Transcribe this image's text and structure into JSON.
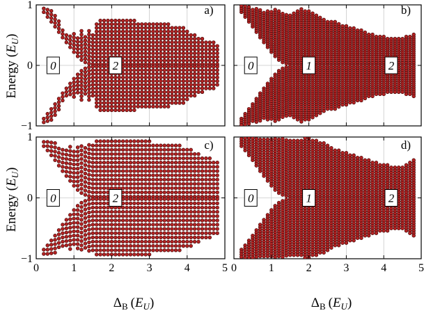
{
  "figure": {
    "ylabel": "Energy (E_U)",
    "ylabel_main": "Energy (",
    "ylabel_sym": "E",
    "ylabel_sub": "U",
    "ylabel_close": ")",
    "xlabel_main": "Δ",
    "xlabel_sub": "B",
    "xlabel_rest": "(",
    "xlabel_sym": "E",
    "xlabel_sym_sub": "U",
    "xlabel_close": ")",
    "dot_color": "#b22222",
    "dot_edge": "#3a0000"
  },
  "chart_data": [
    {
      "type": "scatter",
      "panel_label": "a)",
      "xlim": [
        0,
        5
      ],
      "ylim": [
        -1,
        1
      ],
      "xticks": [
        "0",
        "1",
        "2",
        "3",
        "4",
        "5"
      ],
      "yticks": [
        "−1",
        "0",
        "1"
      ],
      "grid": true,
      "boxes": [
        {
          "text": "0",
          "x": 0.45,
          "y": 0
        },
        {
          "text": "2",
          "x": 2.1,
          "y": 0
        }
      ],
      "x": [
        0.2,
        0.3,
        0.4,
        0.5,
        0.6,
        0.7,
        0.8,
        0.9,
        1.0,
        1.1,
        1.2,
        1.3,
        1.4,
        1.5,
        1.6,
        1.7,
        1.8,
        1.9,
        2.0,
        2.1,
        2.2,
        2.3,
        2.4,
        2.5,
        2.6,
        2.7,
        2.8,
        2.9,
        3.0,
        3.1,
        3.2,
        3.3,
        3.4,
        3.5,
        3.6,
        3.7,
        3.8,
        3.9,
        4.0,
        4.1,
        4.2,
        4.3,
        4.4,
        4.5,
        4.6,
        4.7,
        4.8
      ],
      "gap": [
        0.88,
        0.8,
        0.72,
        0.64,
        0.55,
        0.46,
        0.38,
        0.3,
        0.22,
        0.15,
        0.09,
        0.05,
        0.03,
        0.02,
        0.02,
        0.02,
        0.02,
        0.02,
        0.02,
        0.02,
        0.02,
        0.02,
        0.02,
        0.02,
        0.02,
        0.02,
        0.02,
        0.02,
        0.02,
        0.02,
        0.02,
        0.02,
        0.02,
        0.02,
        0.02,
        0.02,
        0.02,
        0.02,
        0.02,
        0.02,
        0.02,
        0.02,
        0.02,
        0.02,
        0.02,
        0.02,
        0.02
      ],
      "emax": [
        0.98,
        0.95,
        0.9,
        0.85,
        0.75,
        0.6,
        0.55,
        0.5,
        0.55,
        0.45,
        0.6,
        0.5,
        0.6,
        0.55,
        0.72,
        0.75,
        0.75,
        0.75,
        0.75,
        0.75,
        0.75,
        0.75,
        0.74,
        0.74,
        0.74,
        0.73,
        0.73,
        0.72,
        0.72,
        0.71,
        0.7,
        0.7,
        0.69,
        0.68,
        0.66,
        0.65,
        0.64,
        0.62,
        0.6,
        0.55,
        0.5,
        0.48,
        0.45,
        0.42,
        0.4,
        0.38,
        0.35
      ],
      "step": [
        0.06,
        0.06,
        0.06,
        0.06,
        0.06,
        0.06,
        0.06,
        0.06,
        0.06,
        0.06,
        0.06,
        0.06,
        0.06,
        0.06,
        0.06,
        0.06,
        0.06,
        0.06,
        0.06,
        0.06,
        0.06,
        0.06,
        0.06,
        0.06,
        0.06,
        0.06,
        0.06,
        0.06,
        0.06,
        0.06,
        0.06,
        0.06,
        0.06,
        0.06,
        0.06,
        0.06,
        0.06,
        0.06,
        0.06,
        0.06,
        0.06,
        0.06,
        0.06,
        0.06,
        0.06,
        0.06,
        0.06
      ]
    },
    {
      "type": "scatter",
      "panel_label": "b)",
      "xlim": [
        0,
        5
      ],
      "ylim": [
        -1,
        1
      ],
      "xticks": [
        "0",
        "1",
        "2",
        "3",
        "4",
        "5"
      ],
      "yticks": [
        "−1",
        "0",
        "1"
      ],
      "grid": true,
      "boxes": [
        {
          "text": "0",
          "x": 0.45,
          "y": 0
        },
        {
          "text": "1",
          "x": 2.0,
          "y": 0
        },
        {
          "text": "2",
          "x": 4.2,
          "y": 0
        }
      ],
      "x": [
        0.2,
        0.3,
        0.4,
        0.5,
        0.6,
        0.7,
        0.8,
        0.9,
        1.0,
        1.1,
        1.2,
        1.3,
        1.4,
        1.5,
        1.6,
        1.7,
        1.8,
        1.9,
        2.0,
        2.1,
        2.2,
        2.3,
        2.4,
        2.5,
        2.6,
        2.7,
        2.8,
        2.9,
        3.0,
        3.1,
        3.2,
        3.3,
        3.4,
        3.5,
        3.6,
        3.7,
        3.8,
        3.9,
        4.0,
        4.1,
        4.2,
        4.3,
        4.4,
        4.5,
        4.6,
        4.7,
        4.8
      ],
      "gap": [
        0.88,
        0.8,
        0.72,
        0.64,
        0.55,
        0.46,
        0.38,
        0.3,
        0.22,
        0.15,
        0.09,
        0.05,
        0.03,
        0.02,
        0.02,
        0.02,
        0.02,
        0.02,
        0.02,
        0.02,
        0.02,
        0.02,
        0.02,
        0.02,
        0.02,
        0.02,
        0.02,
        0.02,
        0.02,
        0.02,
        0.02,
        0.02,
        0.02,
        0.02,
        0.02,
        0.02,
        0.02,
        0.02,
        0.02,
        0.02,
        0.02,
        0.02,
        0.02,
        0.02,
        0.02,
        0.02,
        0.02
      ],
      "emax": [
        1.0,
        1.0,
        0.98,
        0.95,
        0.95,
        0.92,
        0.9,
        0.92,
        0.9,
        0.92,
        0.9,
        0.88,
        0.86,
        0.84,
        0.88,
        0.9,
        0.95,
        0.92,
        0.9,
        0.88,
        0.85,
        0.82,
        0.78,
        0.75,
        0.73,
        0.72,
        0.7,
        0.68,
        0.66,
        0.64,
        0.62,
        0.6,
        0.58,
        0.56,
        0.54,
        0.52,
        0.5,
        0.49,
        0.48,
        0.47,
        0.46,
        0.45,
        0.45,
        0.46,
        0.48,
        0.5,
        0.52
      ],
      "step": [
        0.035,
        0.035,
        0.035,
        0.035,
        0.035,
        0.035,
        0.035,
        0.035,
        0.035,
        0.035,
        0.035,
        0.035,
        0.035,
        0.035,
        0.035,
        0.035,
        0.035,
        0.035,
        0.035,
        0.035,
        0.035,
        0.035,
        0.035,
        0.035,
        0.035,
        0.035,
        0.035,
        0.035,
        0.035,
        0.035,
        0.035,
        0.035,
        0.035,
        0.035,
        0.035,
        0.035,
        0.035,
        0.035,
        0.035,
        0.035,
        0.035,
        0.035,
        0.035,
        0.035,
        0.035,
        0.035,
        0.035
      ]
    },
    {
      "type": "scatter",
      "panel_label": "c)",
      "xlim": [
        0,
        5
      ],
      "ylim": [
        -1,
        1
      ],
      "xticks": [
        "0",
        "1",
        "2",
        "3",
        "4",
        "5"
      ],
      "yticks": [
        "−1",
        "0",
        "1"
      ],
      "grid": true,
      "boxes": [
        {
          "text": "0",
          "x": 0.45,
          "y": 0
        },
        {
          "text": "2",
          "x": 2.1,
          "y": 0
        }
      ],
      "x": [
        0.2,
        0.3,
        0.4,
        0.5,
        0.6,
        0.7,
        0.8,
        0.9,
        1.0,
        1.1,
        1.2,
        1.3,
        1.4,
        1.5,
        1.6,
        1.7,
        1.8,
        1.9,
        2.0,
        2.1,
        2.2,
        2.3,
        2.4,
        2.5,
        2.6,
        2.7,
        2.8,
        2.9,
        3.0,
        3.1,
        3.2,
        3.3,
        3.4,
        3.5,
        3.6,
        3.7,
        3.8,
        3.9,
        4.0,
        4.1,
        4.2,
        4.3,
        4.4,
        4.5,
        4.6,
        4.7,
        4.8
      ],
      "gap": [
        0.85,
        0.78,
        0.7,
        0.62,
        0.53,
        0.44,
        0.36,
        0.28,
        0.2,
        0.13,
        0.08,
        0.05,
        0.03,
        0.02,
        0.02,
        0.02,
        0.02,
        0.02,
        0.02,
        0.02,
        0.02,
        0.02,
        0.02,
        0.02,
        0.02,
        0.02,
        0.02,
        0.02,
        0.02,
        0.02,
        0.02,
        0.02,
        0.02,
        0.02,
        0.02,
        0.02,
        0.02,
        0.02,
        0.02,
        0.02,
        0.02,
        0.02,
        0.02,
        0.02,
        0.02,
        0.02,
        0.02
      ],
      "emax": [
        0.98,
        0.97,
        0.95,
        0.9,
        0.85,
        0.8,
        0.82,
        0.85,
        0.82,
        0.84,
        0.86,
        0.88,
        0.9,
        0.92,
        0.94,
        0.96,
        0.97,
        0.98,
        0.98,
        0.98,
        0.98,
        0.97,
        0.97,
        0.96,
        0.96,
        0.95,
        0.94,
        0.94,
        0.93,
        0.92,
        0.92,
        0.91,
        0.9,
        0.9,
        0.89,
        0.88,
        0.86,
        0.84,
        0.82,
        0.8,
        0.76,
        0.72,
        0.7,
        0.68,
        0.65,
        0.62,
        0.58
      ],
      "step": [
        0.07,
        0.07,
        0.07,
        0.07,
        0.07,
        0.07,
        0.07,
        0.07,
        0.07,
        0.07,
        0.07,
        0.07,
        0.07,
        0.07,
        0.07,
        0.07,
        0.07,
        0.07,
        0.07,
        0.07,
        0.07,
        0.07,
        0.07,
        0.07,
        0.07,
        0.07,
        0.07,
        0.07,
        0.07,
        0.07,
        0.07,
        0.07,
        0.07,
        0.07,
        0.07,
        0.07,
        0.07,
        0.07,
        0.07,
        0.07,
        0.07,
        0.07,
        0.07,
        0.07,
        0.07,
        0.07,
        0.07
      ]
    },
    {
      "type": "scatter",
      "panel_label": "d)",
      "xlim": [
        0,
        5
      ],
      "ylim": [
        -1,
        1
      ],
      "xticks": [
        "0",
        "1",
        "2",
        "3",
        "4",
        "5"
      ],
      "yticks": [
        "−1",
        "0",
        "1"
      ],
      "grid": true,
      "boxes": [
        {
          "text": "0",
          "x": 0.45,
          "y": 0
        },
        {
          "text": "1",
          "x": 2.0,
          "y": 0
        },
        {
          "text": "2",
          "x": 4.2,
          "y": 0
        }
      ],
      "x": [
        0.2,
        0.3,
        0.4,
        0.5,
        0.6,
        0.7,
        0.8,
        0.9,
        1.0,
        1.1,
        1.2,
        1.3,
        1.4,
        1.5,
        1.6,
        1.7,
        1.8,
        1.9,
        2.0,
        2.1,
        2.2,
        2.3,
        2.4,
        2.5,
        2.6,
        2.7,
        2.8,
        2.9,
        3.0,
        3.1,
        3.2,
        3.3,
        3.4,
        3.5,
        3.6,
        3.7,
        3.8,
        3.9,
        4.0,
        4.1,
        4.2,
        4.3,
        4.4,
        4.5,
        4.6,
        4.7,
        4.8
      ],
      "gap": [
        0.85,
        0.78,
        0.7,
        0.62,
        0.53,
        0.44,
        0.36,
        0.28,
        0.2,
        0.13,
        0.08,
        0.05,
        0.03,
        0.02,
        0.02,
        0.02,
        0.02,
        0.02,
        0.02,
        0.02,
        0.02,
        0.02,
        0.02,
        0.02,
        0.02,
        0.02,
        0.02,
        0.02,
        0.02,
        0.02,
        0.02,
        0.02,
        0.02,
        0.02,
        0.02,
        0.02,
        0.02,
        0.02,
        0.02,
        0.02,
        0.02,
        0.02,
        0.02,
        0.02,
        0.02,
        0.02,
        0.02
      ],
      "emax": [
        1.0,
        1.0,
        1.0,
        0.98,
        0.98,
        0.97,
        0.97,
        0.98,
        0.98,
        0.98,
        0.98,
        0.97,
        0.97,
        0.96,
        0.96,
        0.95,
        0.97,
        0.98,
        0.98,
        0.97,
        0.95,
        0.93,
        0.9,
        0.86,
        0.83,
        0.8,
        0.78,
        0.76,
        0.74,
        0.72,
        0.7,
        0.68,
        0.66,
        0.64,
        0.62,
        0.6,
        0.58,
        0.56,
        0.55,
        0.54,
        0.53,
        0.52,
        0.52,
        0.53,
        0.55,
        0.58,
        0.62
      ],
      "step": [
        0.04,
        0.04,
        0.04,
        0.04,
        0.04,
        0.04,
        0.04,
        0.04,
        0.04,
        0.04,
        0.04,
        0.04,
        0.04,
        0.04,
        0.04,
        0.04,
        0.04,
        0.04,
        0.04,
        0.04,
        0.04,
        0.04,
        0.04,
        0.04,
        0.04,
        0.04,
        0.04,
        0.04,
        0.04,
        0.04,
        0.04,
        0.04,
        0.04,
        0.04,
        0.04,
        0.04,
        0.04,
        0.04,
        0.04,
        0.04,
        0.04,
        0.04,
        0.04,
        0.04,
        0.04,
        0.04,
        0.04
      ]
    }
  ]
}
